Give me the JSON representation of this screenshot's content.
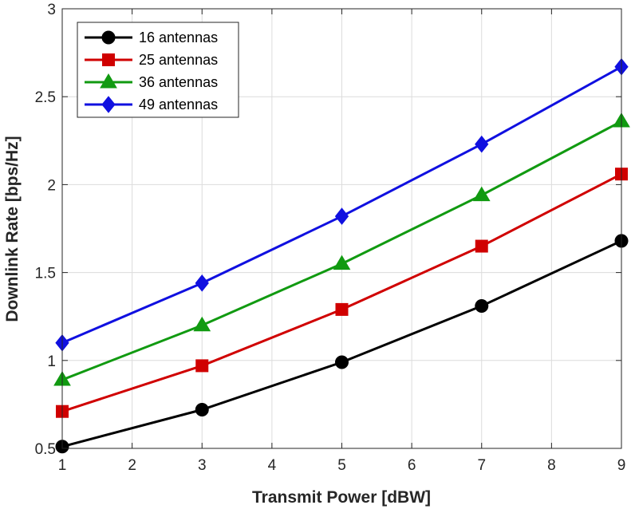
{
  "chart_data": {
    "type": "line",
    "title": "",
    "xlabel": "Transmit Power [dBW]",
    "ylabel": "Downlink Rate [bps/Hz]",
    "xlim": [
      1,
      9
    ],
    "ylim": [
      0.5,
      3
    ],
    "xticks": [
      1,
      2,
      3,
      4,
      5,
      6,
      7,
      8,
      9
    ],
    "yticks": [
      0.5,
      1,
      1.5,
      2,
      2.5,
      3
    ],
    "xtick_labels": [
      "1",
      "2",
      "3",
      "4",
      "5",
      "6",
      "7",
      "8",
      "9"
    ],
    "ytick_labels": [
      "0.5",
      "1",
      "1.5",
      "2",
      "2.5",
      "3"
    ],
    "grid": true,
    "legend_position": "top-left",
    "x": [
      1,
      3,
      5,
      7,
      9
    ],
    "series": [
      {
        "name": "16 antennas",
        "color": "#000000",
        "marker": "circle",
        "values": [
          0.51,
          0.72,
          0.99,
          1.31,
          1.68
        ]
      },
      {
        "name": "25 antennas",
        "color": "#d00000",
        "marker": "square",
        "values": [
          0.71,
          0.97,
          1.29,
          1.65,
          2.06
        ]
      },
      {
        "name": "36 antennas",
        "color": "#119a11",
        "marker": "triangle",
        "values": [
          0.89,
          1.2,
          1.55,
          1.94,
          2.36
        ]
      },
      {
        "name": "49 antennas",
        "color": "#1010e0",
        "marker": "diamond",
        "values": [
          1.1,
          1.44,
          1.82,
          2.23,
          2.67
        ]
      }
    ]
  }
}
